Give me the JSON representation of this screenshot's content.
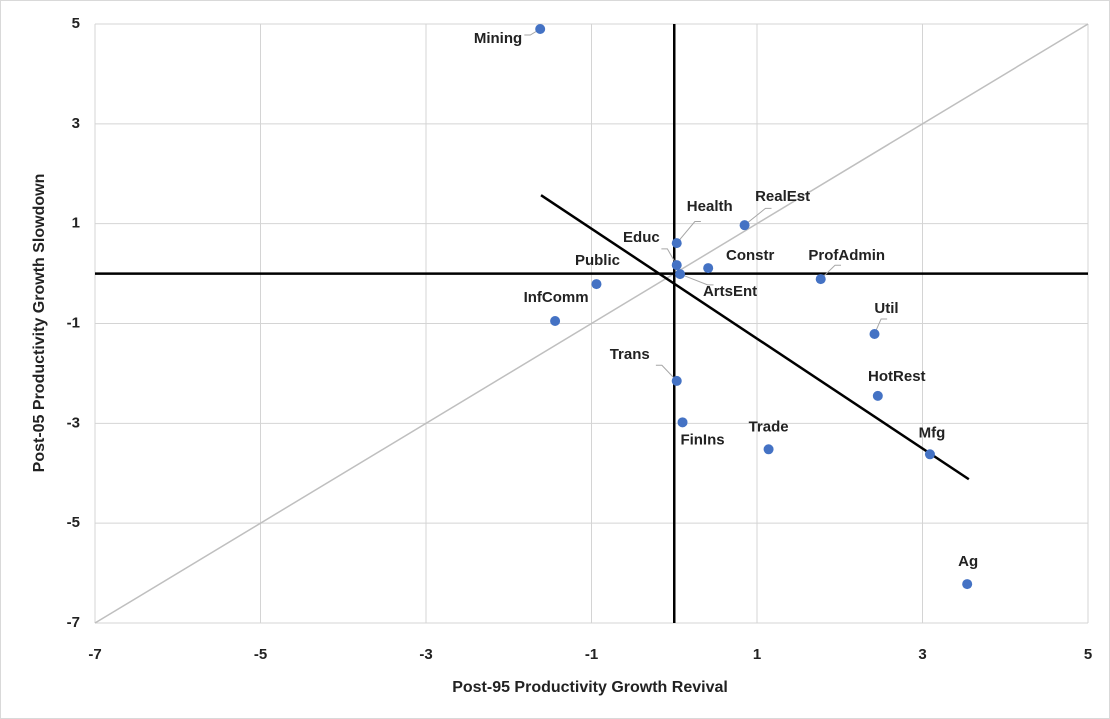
{
  "chart_data": {
    "type": "scatter",
    "x_label": "Post-95 Productivity Growth Revival",
    "y_label": "Post-05 Productivity Growth Slowdown",
    "point_labels": [
      "Mining",
      "Health",
      "RealEst",
      "Educ",
      "Constr",
      "ArtsEnt",
      "Public",
      "ProfAdmin",
      "InfComm",
      "Util",
      "Trans",
      "HotRest",
      "FinIns",
      "Trade",
      "Mfg",
      "Ag"
    ],
    "x": [
      -1.62,
      0.03,
      0.85,
      0.03,
      0.41,
      0.07,
      -0.94,
      1.77,
      -1.44,
      2.42,
      0.03,
      2.46,
      0.1,
      1.14,
      3.09,
      3.54
    ],
    "values": [
      4.9,
      0.61,
      0.97,
      0.17,
      0.11,
      -0.01,
      -0.21,
      -0.11,
      -0.95,
      -1.21,
      -2.15,
      -2.45,
      -2.98,
      -3.52,
      -3.62,
      -6.22
    ],
    "color": "#4472c4",
    "trendline": {
      "x": [
        -1.61,
        3.56
      ],
      "y": [
        1.57,
        -4.12
      ]
    },
    "diagonal": true,
    "zero_lines": true,
    "xlim": [
      -7,
      5
    ],
    "xticks": [
      -7,
      -5,
      -3,
      -1,
      1,
      3,
      5
    ],
    "ylim": [
      -7,
      5
    ],
    "yticks": [
      -7,
      -5,
      -3,
      -1,
      1,
      3,
      5
    ],
    "grid": true
  }
}
